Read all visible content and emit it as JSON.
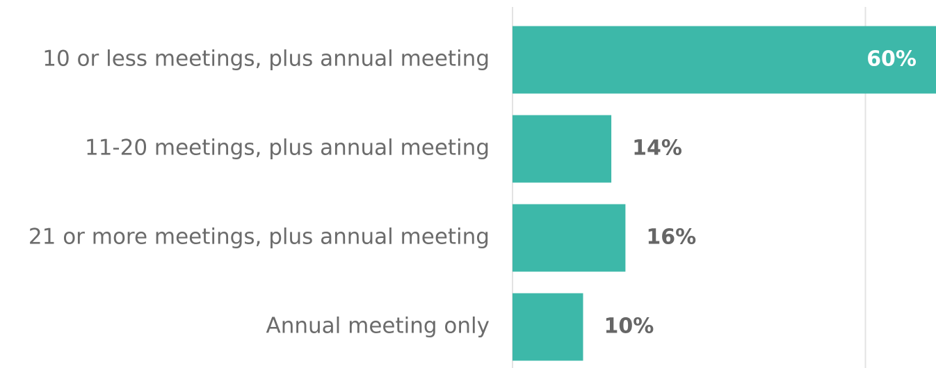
{
  "chart_data": {
    "type": "bar",
    "orientation": "horizontal",
    "categories": [
      "10 or less meetings, plus annual meeting",
      "11-20 meetings, plus annual meeting",
      "21 or more meetings, plus annual meeting",
      "Annual meeting only"
    ],
    "values": [
      60,
      14,
      16,
      10
    ],
    "value_labels": [
      "60%",
      "14%",
      "16%",
      "10%"
    ],
    "color": "#3db8a9",
    "xlim": [
      0,
      60
    ],
    "xticks": [
      0,
      50
    ],
    "grid": true
  }
}
